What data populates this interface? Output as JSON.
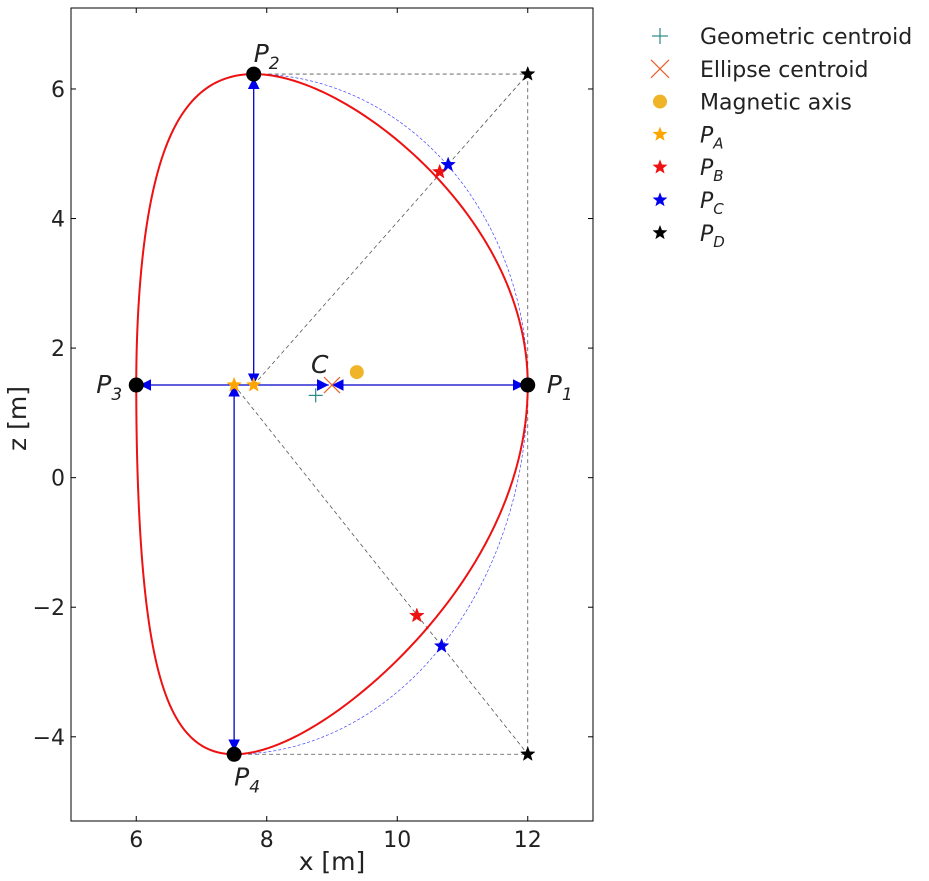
{
  "chart_data": {
    "type": "scatter",
    "xlabel": "x [m]",
    "ylabel": "z [m]",
    "xlim": [
      5.0,
      13.0
    ],
    "ylim": [
      -5.3,
      7.25
    ],
    "xticks": [
      6,
      8,
      10,
      12
    ],
    "yticks": [
      -4,
      -2,
      0,
      2,
      4,
      6
    ],
    "grid": false,
    "legend_position": "outside-right-top",
    "boundary": {
      "color": "#ee1111",
      "R0": 9.0,
      "a": 3.0,
      "kappa": 1.83,
      "delta": 0.5,
      "z0": 1.43,
      "kappa_upper": 1.6,
      "kappa_lower": 1.9,
      "delta_upper": 0.4,
      "delta_lower": 0.5
    },
    "points": {
      "P1": {
        "x": 12.0,
        "z": 1.43,
        "label": "P",
        "sub": "1"
      },
      "P2": {
        "x": 7.8,
        "z": 6.23,
        "label": "P",
        "sub": "2"
      },
      "P3": {
        "x": 6.0,
        "z": 1.43,
        "label": "P",
        "sub": "3"
      },
      "P4": {
        "x": 7.5,
        "z": -4.27,
        "label": "P",
        "sub": "4"
      }
    },
    "C_label": "C",
    "C": {
      "x": 9.0,
      "z": 1.43
    },
    "geometric_centroid": {
      "x": 8.75,
      "z": 1.27
    },
    "ellipse_centroid": {
      "x": 9.0,
      "z": 1.43
    },
    "magnetic_axis": {
      "x": 9.38,
      "z": 1.63
    },
    "PA": [
      {
        "x": 7.5,
        "z": 1.43
      },
      {
        "x": 7.8,
        "z": 1.43
      }
    ],
    "PB": [
      {
        "x": 10.65,
        "z": 4.72
      },
      {
        "x": 10.3,
        "z": -2.13
      }
    ],
    "PC": [
      {
        "x": 10.78,
        "z": 4.83
      },
      {
        "x": 10.68,
        "z": -2.6
      }
    ],
    "PD": [
      {
        "x": 12.0,
        "z": 6.23
      },
      {
        "x": 12.0,
        "z": -4.27
      }
    ],
    "legend": [
      {
        "marker": "plus",
        "color": "#2a8a86",
        "label": "Geometric centroid",
        "sub": ""
      },
      {
        "marker": "x",
        "color": "#e8612c",
        "label": "Ellipse centroid",
        "sub": ""
      },
      {
        "marker": "circle",
        "color": "#f0b429",
        "label": "Magnetic axis",
        "sub": ""
      },
      {
        "marker": "star",
        "color": "#ffa500",
        "label": "P",
        "sub": "A"
      },
      {
        "marker": "star",
        "color": "#ee1111",
        "label": "P",
        "sub": "B"
      },
      {
        "marker": "star",
        "color": "#0000ee",
        "label": "P",
        "sub": "C"
      },
      {
        "marker": "star",
        "color": "#000000",
        "label": "P",
        "sub": "D"
      }
    ]
  }
}
